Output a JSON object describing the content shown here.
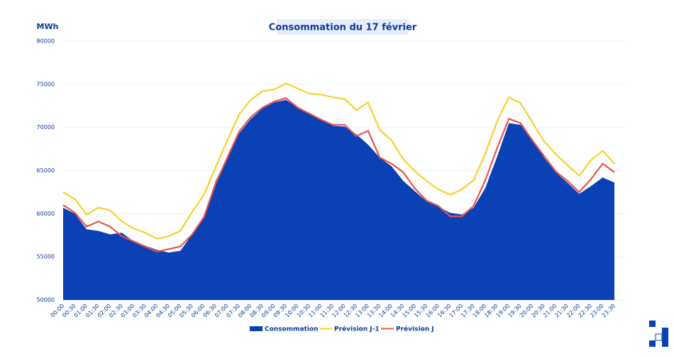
{
  "chart_data": {
    "type": "area-line",
    "title": "Consommation du 17 février",
    "y_unit": "MWh",
    "categories": [
      "00:00",
      "00:30",
      "01:00",
      "01:30",
      "02:00",
      "02:30",
      "03:00",
      "03:30",
      "04:00",
      "04:30",
      "05:00",
      "05:30",
      "06:00",
      "06:30",
      "07:00",
      "07:30",
      "08:00",
      "08:30",
      "09:00",
      "09:30",
      "10:00",
      "10:30",
      "11:00",
      "11:30",
      "12:00",
      "12:30",
      "13:00",
      "13:30",
      "14:00",
      "14:30",
      "15:00",
      "15:30",
      "16:00",
      "16:30",
      "17:00",
      "17:30",
      "18:00",
      "18:30",
      "19:00",
      "19:30",
      "20:00",
      "20:30",
      "21:00",
      "21:30",
      "22:00",
      "22:30",
      "23:00",
      "23:30"
    ],
    "series": [
      {
        "name": "Consommation",
        "color": "#0a41b5",
        "kind": "area",
        "values": [
          60700,
          60000,
          58200,
          58000,
          57600,
          57800,
          56800,
          56300,
          55800,
          55500,
          55700,
          57600,
          59800,
          63800,
          66500,
          69300,
          71000,
          72200,
          72900,
          73200,
          72300,
          71700,
          70900,
          70200,
          70100,
          69200,
          68000,
          66500,
          65500,
          63800,
          62600,
          61400,
          60800,
          60100,
          59900,
          60700,
          63000,
          66600,
          70500,
          70300,
          68700,
          66500,
          64800,
          63600,
          62300,
          63200,
          64200,
          63600
        ]
      },
      {
        "name": "Prévision J-1",
        "color": "#f5d22a",
        "kind": "line",
        "values": [
          62500,
          61700,
          59900,
          60700,
          60400,
          59100,
          58300,
          57800,
          57100,
          57400,
          58000,
          60200,
          62200,
          65400,
          68500,
          71500,
          73200,
          74200,
          74400,
          75100,
          74500,
          73900,
          73800,
          73500,
          73300,
          72000,
          72900,
          69700,
          68500,
          66300,
          64900,
          63800,
          62800,
          62200,
          62800,
          63900,
          67000,
          70700,
          73500,
          72800,
          70600,
          68400,
          66900,
          65600,
          64400,
          66200,
          67300,
          65800
        ]
      },
      {
        "name": "Prévision J",
        "color": "#e8544f",
        "kind": "line",
        "values": [
          61000,
          60100,
          58500,
          59100,
          58500,
          57400,
          56800,
          56200,
          55600,
          55900,
          56200,
          57600,
          59600,
          63500,
          66500,
          69500,
          71200,
          72300,
          73000,
          73400,
          72300,
          71600,
          70900,
          70300,
          70300,
          69000,
          69600,
          66500,
          65800,
          64800,
          62900,
          61500,
          60900,
          59700,
          59700,
          60900,
          63900,
          67600,
          71000,
          70500,
          68500,
          66700,
          64900,
          63800,
          62500,
          64000,
          65800,
          64800
        ]
      }
    ],
    "ylim": [
      50000,
      80000
    ],
    "yticks": [
      50000,
      55000,
      60000,
      65000,
      70000,
      75000,
      80000
    ],
    "grid": true
  }
}
